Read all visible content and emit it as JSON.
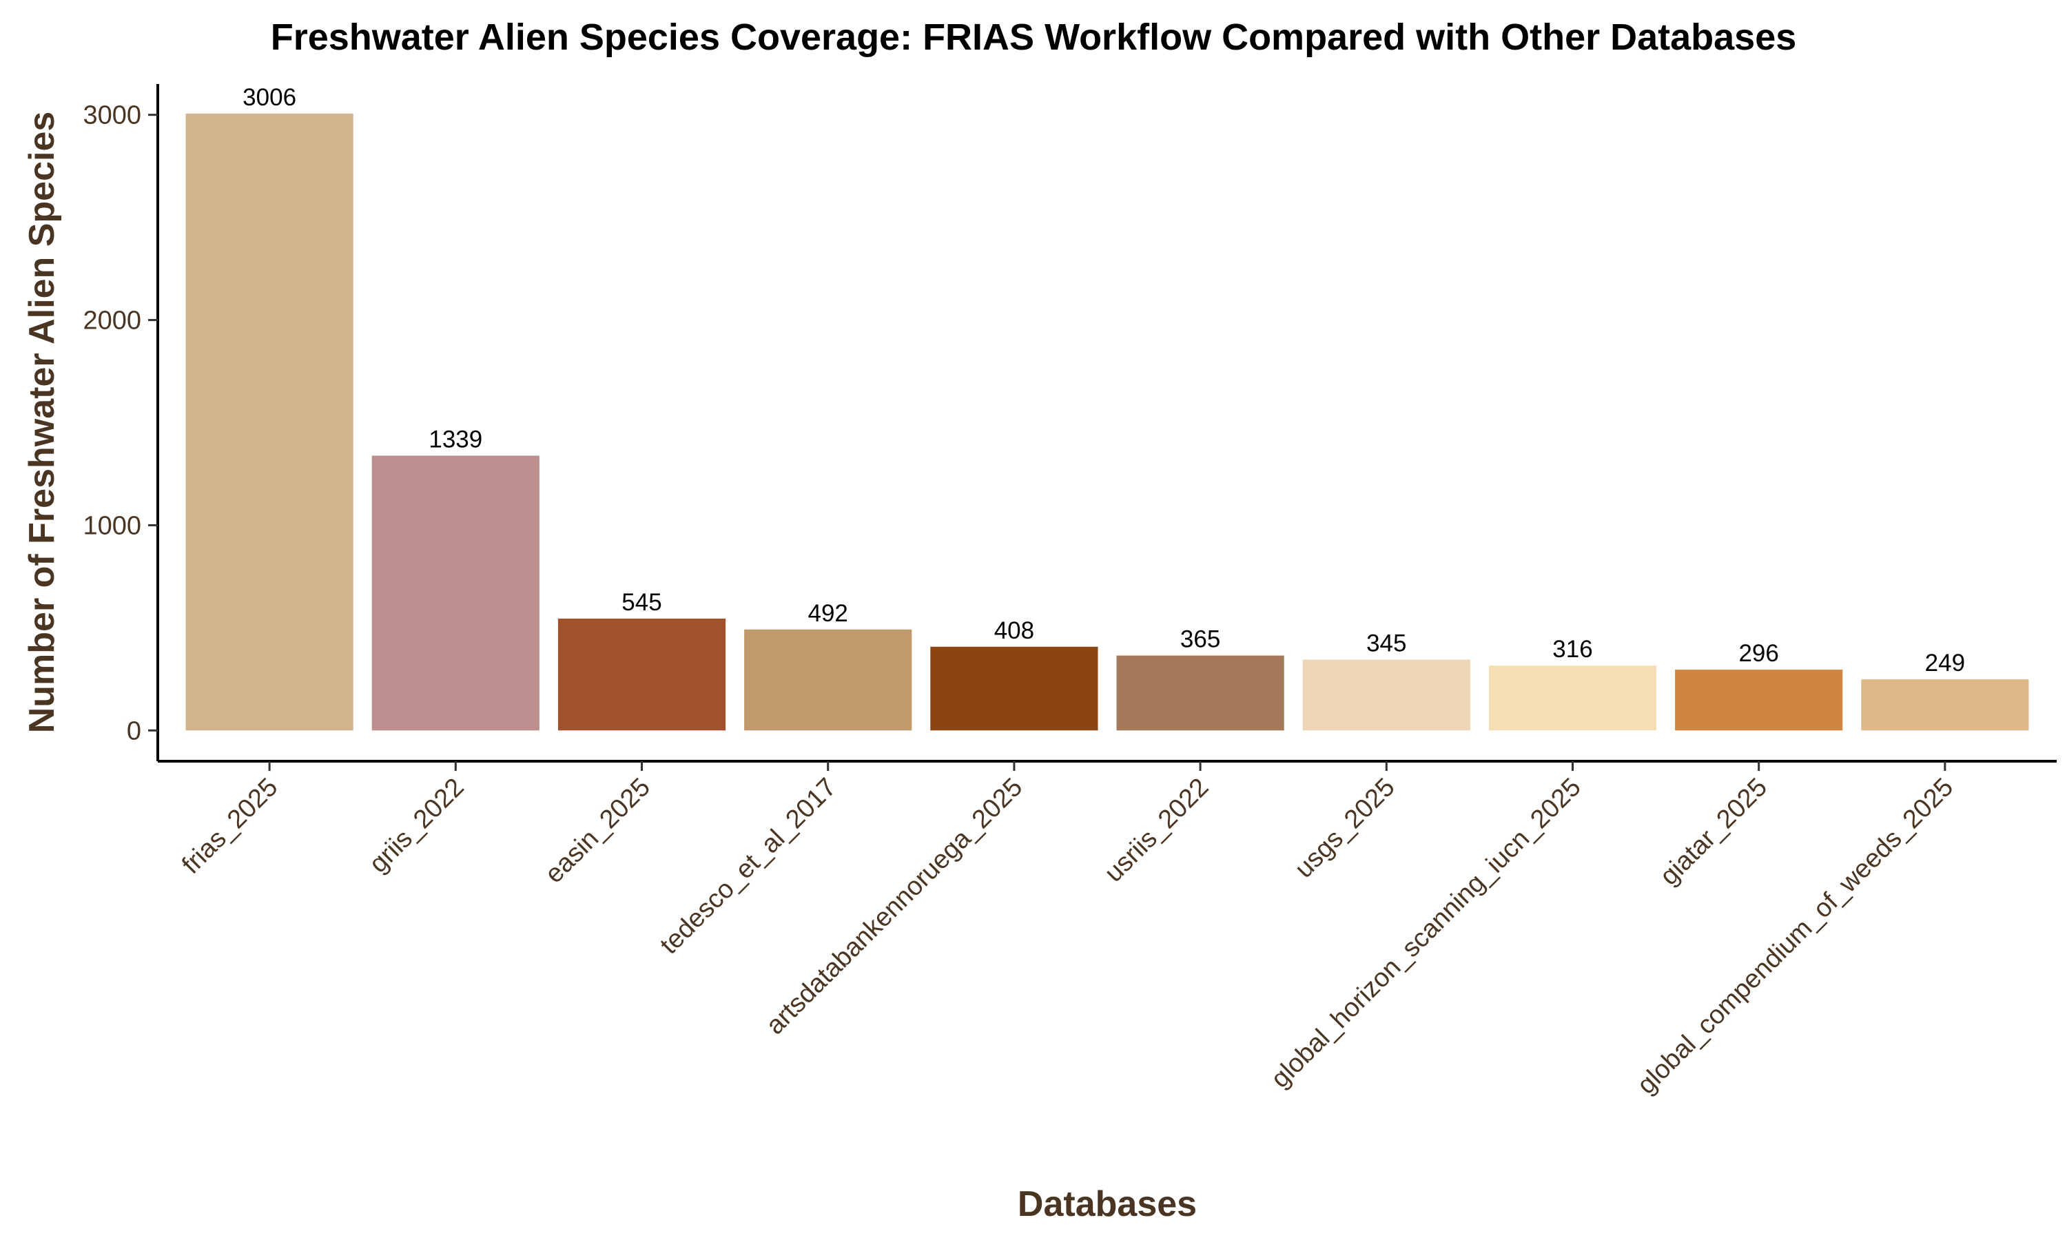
{
  "chart_data": {
    "type": "bar",
    "title": "Freshwater Alien Species Coverage: FRIAS Workflow Compared with Other Databases",
    "xlabel": "Databases",
    "ylabel": "Number of Freshwater Alien Species",
    "categories": [
      "frias_2025",
      "griis_2022",
      "easin_2025",
      "tedesco_et_al_2017",
      "artsdatabankennoruega_2025",
      "usriis_2022",
      "usgs_2025",
      "global_horizon_scanning_iucn_2025",
      "giatar_2025",
      "global_compendium_of_weeds_2025"
    ],
    "values": [
      3006,
      1339,
      545,
      492,
      408,
      365,
      345,
      316,
      296,
      249
    ],
    "value_labels": [
      "3006",
      "1339",
      "545",
      "492",
      "408",
      "365",
      "345",
      "316",
      "296",
      "249"
    ],
    "colors": [
      "#d2b48c",
      "#bc8f8f",
      "#a0522d",
      "#c19a6b",
      "#8b4513",
      "#a47a5a",
      "#eed5b7",
      "#f5deb3",
      "#cd853f",
      "#deb887"
    ],
    "yticks": [
      0,
      1000,
      2000,
      3000
    ],
    "ytick_labels": [
      "0",
      "1000",
      "2000",
      "3000"
    ],
    "ylim": [
      -150,
      3150
    ],
    "grid": false,
    "legend": "none"
  }
}
